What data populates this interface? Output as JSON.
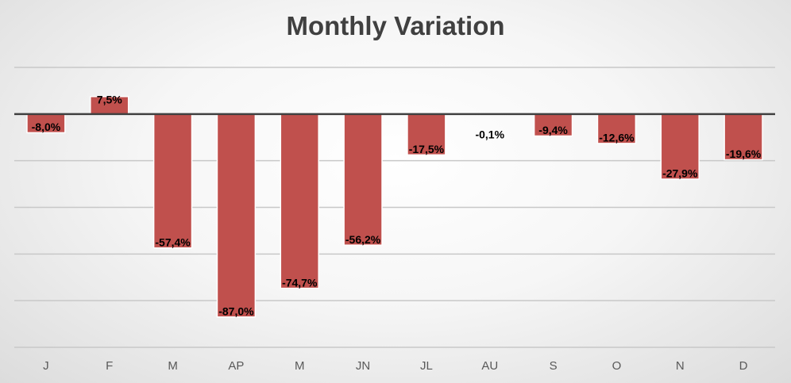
{
  "chart_data": {
    "type": "bar",
    "title": "Monthly Variation",
    "xlabel": "",
    "ylabel": "",
    "categories": [
      "J",
      "F",
      "M",
      "AP",
      "M",
      "JN",
      "JL",
      "AU",
      "S",
      "O",
      "N",
      "D"
    ],
    "values": [
      -8.0,
      7.5,
      -57.4,
      -87.0,
      -74.7,
      -56.2,
      -17.5,
      -0.1,
      -9.4,
      -12.6,
      -27.9,
      -19.6
    ],
    "data_labels": [
      "-8,0%",
      "7,5%",
      "-57,4%",
      "-87,0%",
      "-74,7%",
      "-56,2%",
      "-17,5%",
      "-0,1%",
      "-9,4%",
      "-12,6%",
      "-27,9%",
      "-19,6%"
    ],
    "ylim": [
      -100,
      20
    ],
    "gridlines": [
      20,
      0,
      -20,
      -40,
      -60,
      -80,
      -100
    ],
    "grid": true,
    "legend": "none",
    "y_tick_labels_visible": false,
    "colors": {
      "bar": "#c0504d",
      "bar_edge": "#ffffff",
      "zero_line": "#404040",
      "grid": "#c8c8c8",
      "title": "#404040"
    }
  }
}
